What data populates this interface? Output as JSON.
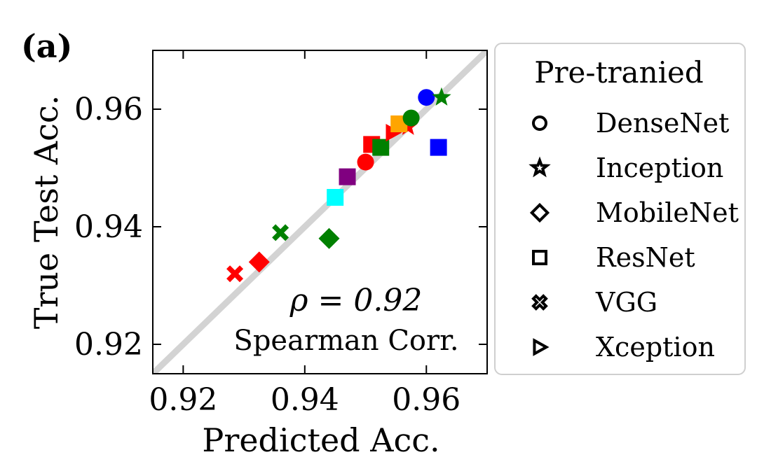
{
  "panel_label": "(a)",
  "annotation": {
    "line1": "ρ = 0.92",
    "line2": "Spearman Corr."
  },
  "legend": {
    "title": "Pre-tranied",
    "entries": [
      {
        "label": "DenseNet",
        "marker": "circle"
      },
      {
        "label": "Inception",
        "marker": "star"
      },
      {
        "label": "MobileNet",
        "marker": "diamond"
      },
      {
        "label": "ResNet",
        "marker": "square"
      },
      {
        "label": "VGG",
        "marker": "x"
      },
      {
        "label": "Xception",
        "marker": "triangle-right"
      }
    ]
  },
  "colors": {
    "red": "#ff0000",
    "green": "#008000",
    "blue": "#0000ff",
    "orange": "#ffa500",
    "cyan": "#00ffff",
    "purple": "#800080",
    "diagonal": "#d3d3d3"
  },
  "chart_data": {
    "type": "scatter",
    "xlabel": "Predicted Acc.",
    "ylabel": "True Test Acc.",
    "xlim": [
      0.915,
      0.97
    ],
    "ylim": [
      0.915,
      0.97
    ],
    "xticks": [
      0.92,
      0.94,
      0.96
    ],
    "yticks": [
      0.92,
      0.94,
      0.96
    ],
    "xtick_labels": [
      "0.92",
      "0.94",
      "0.96"
    ],
    "ytick_labels": [
      "0.92",
      "0.94",
      "0.96"
    ],
    "diagonal": true,
    "points": [
      {
        "marker": "x",
        "color": "red",
        "x": 0.9285,
        "y": 0.932
      },
      {
        "marker": "diamond",
        "color": "red",
        "x": 0.9325,
        "y": 0.934
      },
      {
        "marker": "x",
        "color": "green",
        "x": 0.936,
        "y": 0.939
      },
      {
        "marker": "diamond",
        "color": "green",
        "x": 0.944,
        "y": 0.938
      },
      {
        "marker": "square",
        "color": "cyan",
        "x": 0.945,
        "y": 0.945
      },
      {
        "marker": "square",
        "color": "purple",
        "x": 0.947,
        "y": 0.9485
      },
      {
        "marker": "circle",
        "color": "red",
        "x": 0.95,
        "y": 0.951
      },
      {
        "marker": "square",
        "color": "red",
        "x": 0.951,
        "y": 0.954
      },
      {
        "marker": "square",
        "color": "green",
        "x": 0.9525,
        "y": 0.9535
      },
      {
        "marker": "triangle-right",
        "color": "red",
        "x": 0.9545,
        "y": 0.956
      },
      {
        "marker": "star",
        "color": "red",
        "x": 0.957,
        "y": 0.957
      },
      {
        "marker": "square",
        "color": "orange",
        "x": 0.9555,
        "y": 0.9575
      },
      {
        "marker": "circle",
        "color": "green",
        "x": 0.9575,
        "y": 0.9585
      },
      {
        "marker": "circle",
        "color": "blue",
        "x": 0.96,
        "y": 0.962
      },
      {
        "marker": "star",
        "color": "green",
        "x": 0.9625,
        "y": 0.962
      },
      {
        "marker": "square",
        "color": "blue",
        "x": 0.962,
        "y": 0.9535
      }
    ]
  }
}
